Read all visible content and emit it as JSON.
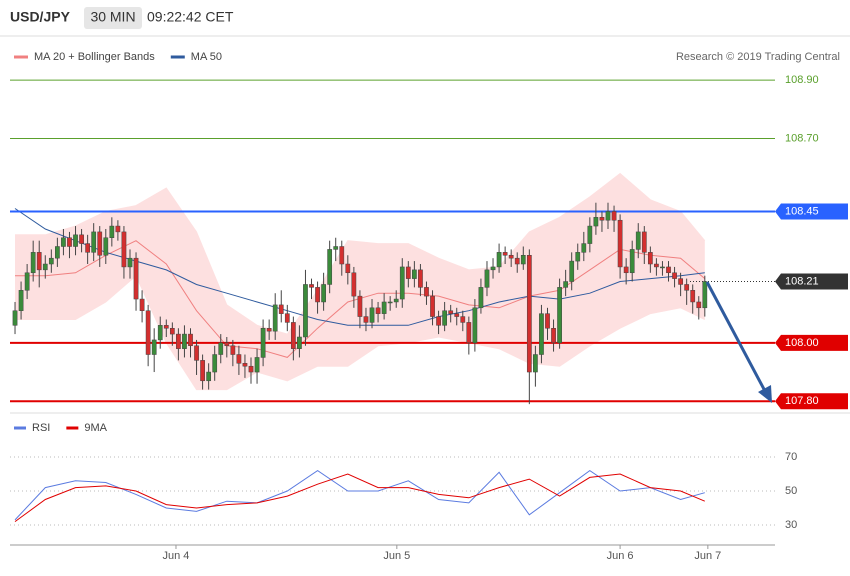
{
  "header": {
    "symbol": "USD/JPY",
    "interval": "30 MIN",
    "time": "09:22:42 CET"
  },
  "chart_data": [
    {
      "type": "candlestick",
      "credit": "Research © 2019 Trading Central",
      "up_color": "#3b8b3b",
      "down_color": "#d32f2f",
      "xlim": [
        -0.83,
        125.6
      ],
      "ylim": [
        107.77,
        109.14
      ],
      "xticks": [
        {
          "value": 26.6,
          "label": "Jun 4"
        },
        {
          "value": 63.1,
          "label": "Jun 5"
        },
        {
          "value": 100,
          "label": "Jun 6"
        },
        {
          "value": 114.5,
          "label": "Jun 7"
        }
      ],
      "ohlc": [
        [
          108.06,
          108.14,
          108.03,
          108.11
        ],
        [
          108.11,
          108.21,
          108.08,
          108.18
        ],
        [
          108.18,
          108.27,
          108.15,
          108.24
        ],
        [
          108.24,
          108.35,
          108.21,
          108.31
        ],
        [
          108.31,
          108.35,
          108.19,
          108.25
        ],
        [
          108.25,
          108.3,
          108.22,
          108.27
        ],
        [
          108.27,
          108.32,
          108.24,
          108.29
        ],
        [
          108.29,
          108.36,
          108.26,
          108.33
        ],
        [
          108.33,
          108.39,
          108.3,
          108.36
        ],
        [
          108.36,
          108.38,
          108.29,
          108.33
        ],
        [
          108.33,
          108.4,
          108.3,
          108.37
        ],
        [
          108.37,
          108.39,
          108.31,
          108.34
        ],
        [
          108.34,
          108.37,
          108.27,
          108.31
        ],
        [
          108.31,
          108.41,
          108.28,
          108.38
        ],
        [
          108.38,
          108.4,
          108.26,
          108.3
        ],
        [
          108.3,
          108.39,
          108.27,
          108.36
        ],
        [
          108.36,
          108.43,
          108.33,
          108.4
        ],
        [
          108.4,
          108.42,
          108.35,
          108.38
        ],
        [
          108.38,
          108.4,
          108.22,
          108.26
        ],
        [
          108.26,
          108.32,
          108.22,
          108.29
        ],
        [
          108.29,
          108.31,
          108.11,
          108.15
        ],
        [
          108.15,
          108.18,
          108.07,
          108.11
        ],
        [
          108.11,
          108.13,
          107.92,
          107.96
        ],
        [
          107.96,
          108.05,
          107.9,
          108.01
        ],
        [
          108.01,
          108.09,
          107.98,
          108.06
        ],
        [
          108.06,
          108.08,
          108.02,
          108.05
        ],
        [
          108.05,
          108.07,
          107.99,
          108.03
        ],
        [
          108.03,
          108.05,
          107.94,
          107.98
        ],
        [
          107.98,
          108.06,
          107.95,
          108.03
        ],
        [
          108.03,
          108.05,
          107.95,
          107.99
        ],
        [
          107.99,
          108.01,
          107.89,
          107.94
        ],
        [
          107.94,
          107.96,
          107.84,
          107.87
        ],
        [
          107.87,
          107.93,
          107.84,
          107.9
        ],
        [
          107.9,
          107.99,
          107.87,
          107.96
        ],
        [
          107.96,
          108.03,
          107.93,
          108.0
        ],
        [
          108.0,
          108.02,
          107.95,
          107.99
        ],
        [
          107.99,
          108.01,
          107.92,
          107.96
        ],
        [
          107.96,
          107.99,
          107.89,
          107.93
        ],
        [
          107.93,
          107.96,
          107.88,
          107.92
        ],
        [
          107.92,
          107.95,
          107.86,
          107.9
        ],
        [
          107.9,
          107.98,
          107.86,
          107.95
        ],
        [
          107.95,
          108.08,
          107.92,
          108.05
        ],
        [
          108.05,
          108.08,
          108.01,
          108.04
        ],
        [
          108.04,
          108.17,
          108.01,
          108.13
        ],
        [
          108.13,
          108.18,
          108.07,
          108.1
        ],
        [
          108.1,
          108.13,
          108.04,
          108.07
        ],
        [
          108.07,
          108.09,
          107.94,
          107.98
        ],
        [
          107.98,
          108.06,
          107.95,
          108.02
        ],
        [
          108.02,
          108.25,
          107.99,
          108.2
        ],
        [
          108.2,
          108.22,
          108.15,
          108.19
        ],
        [
          108.19,
          108.21,
          108.1,
          108.14
        ],
        [
          108.14,
          108.24,
          108.11,
          108.2
        ],
        [
          108.2,
          108.35,
          108.17,
          108.32
        ],
        [
          108.32,
          108.36,
          108.28,
          108.33
        ],
        [
          108.33,
          108.35,
          108.23,
          108.27
        ],
        [
          108.27,
          108.3,
          108.2,
          108.24
        ],
        [
          108.24,
          108.26,
          108.12,
          108.16
        ],
        [
          108.16,
          108.18,
          108.05,
          108.09
        ],
        [
          108.09,
          108.12,
          108.04,
          108.07
        ],
        [
          108.07,
          108.15,
          108.05,
          108.12
        ],
        [
          108.12,
          108.14,
          108.07,
          108.1
        ],
        [
          108.1,
          108.17,
          108.08,
          108.14
        ],
        [
          108.14,
          108.16,
          108.11,
          108.14
        ],
        [
          108.14,
          108.18,
          108.12,
          108.15
        ],
        [
          108.15,
          108.29,
          108.12,
          108.26
        ],
        [
          108.26,
          108.28,
          108.19,
          108.22
        ],
        [
          108.22,
          108.28,
          108.19,
          108.25
        ],
        [
          108.25,
          108.27,
          108.16,
          108.19
        ],
        [
          108.19,
          108.21,
          108.13,
          108.16
        ],
        [
          108.16,
          108.18,
          108.06,
          108.09
        ],
        [
          108.09,
          108.11,
          108.03,
          108.06
        ],
        [
          108.06,
          108.14,
          108.04,
          108.11
        ],
        [
          108.11,
          108.13,
          108.07,
          108.1
        ],
        [
          108.1,
          108.12,
          108.06,
          108.09
        ],
        [
          108.09,
          108.11,
          108.04,
          108.07
        ],
        [
          108.07,
          108.09,
          107.96,
          108.0
        ],
        [
          108.0,
          108.15,
          107.97,
          108.12
        ],
        [
          108.12,
          108.22,
          108.1,
          108.19
        ],
        [
          108.19,
          108.28,
          108.16,
          108.25
        ],
        [
          108.25,
          108.29,
          108.22,
          108.26
        ],
        [
          108.26,
          108.34,
          108.24,
          108.31
        ],
        [
          108.31,
          108.33,
          108.27,
          108.3
        ],
        [
          108.3,
          108.32,
          108.26,
          108.29
        ],
        [
          108.29,
          108.31,
          108.24,
          108.27
        ],
        [
          108.27,
          108.33,
          108.25,
          108.3
        ],
        [
          108.3,
          108.32,
          107.79,
          107.9
        ],
        [
          107.9,
          107.99,
          107.85,
          107.96
        ],
        [
          107.96,
          108.13,
          107.93,
          108.1
        ],
        [
          108.1,
          108.12,
          108.01,
          108.05
        ],
        [
          108.05,
          108.08,
          107.97,
          108.0
        ],
        [
          108.0,
          108.22,
          107.98,
          108.19
        ],
        [
          108.19,
          108.25,
          108.16,
          108.21
        ],
        [
          108.21,
          108.31,
          108.18,
          108.28
        ],
        [
          108.28,
          108.34,
          108.25,
          108.31
        ],
        [
          108.31,
          108.38,
          108.28,
          108.34
        ],
        [
          108.34,
          108.43,
          108.31,
          108.4
        ],
        [
          108.4,
          108.48,
          108.37,
          108.43
        ],
        [
          108.43,
          108.45,
          108.38,
          108.42
        ],
        [
          108.42,
          108.48,
          108.39,
          108.45
        ],
        [
          108.45,
          108.47,
          108.38,
          108.42
        ],
        [
          108.42,
          108.44,
          108.22,
          108.26
        ],
        [
          108.26,
          108.29,
          108.2,
          108.24
        ],
        [
          108.24,
          108.35,
          108.21,
          108.32
        ],
        [
          108.32,
          108.41,
          108.29,
          108.38
        ],
        [
          108.38,
          108.4,
          108.27,
          108.31
        ],
        [
          108.31,
          108.33,
          108.24,
          108.27
        ],
        [
          108.27,
          108.29,
          108.23,
          108.26
        ],
        [
          108.26,
          108.28,
          108.23,
          108.26
        ],
        [
          108.26,
          108.28,
          108.21,
          108.24
        ],
        [
          108.24,
          108.26,
          108.19,
          108.22
        ],
        [
          108.22,
          108.24,
          108.16,
          108.2
        ],
        [
          108.2,
          108.22,
          108.13,
          108.18
        ],
        [
          108.18,
          108.2,
          108.1,
          108.14
        ],
        [
          108.14,
          108.16,
          108.08,
          108.12
        ],
        [
          108.12,
          108.23,
          108.09,
          108.21
        ]
      ],
      "series": [
        {
          "name": "MA 20 + Bollinger Bands",
          "color": "#f08080",
          "band_color": "#fde0e0",
          "x": [
            0,
            5,
            10,
            15,
            20,
            25,
            30,
            35,
            40,
            45,
            50,
            55,
            60,
            65,
            70,
            75,
            80,
            85,
            90,
            95,
            100,
            105,
            110,
            114
          ],
          "values": [
            108.23,
            108.23,
            108.24,
            108.3,
            108.35,
            108.27,
            108.11,
            107.99,
            107.98,
            107.95,
            108.05,
            108.14,
            108.17,
            108.17,
            108.16,
            108.13,
            108.12,
            108.16,
            108.18,
            108.25,
            108.32,
            108.3,
            108.29,
            108.22
          ],
          "upper": [
            108.37,
            108.37,
            108.4,
            108.45,
            108.47,
            108.53,
            108.38,
            108.13,
            108.06,
            108.03,
            108.18,
            108.35,
            108.34,
            108.34,
            108.29,
            108.25,
            108.26,
            108.38,
            108.43,
            108.5,
            108.58,
            108.49,
            108.45,
            108.35
          ],
          "lower": [
            108.08,
            108.08,
            108.08,
            108.14,
            108.23,
            108.0,
            107.84,
            107.84,
            107.9,
            107.87,
            107.92,
            107.92,
            107.99,
            108.0,
            108.02,
            108.0,
            107.98,
            107.93,
            107.92,
            107.99,
            108.05,
            108.1,
            108.12,
            108.08
          ]
        },
        {
          "name": "MA 50",
          "color": "#2f5b9e",
          "x": [
            0,
            5,
            10,
            15,
            20,
            25,
            30,
            35,
            40,
            45,
            50,
            55,
            60,
            65,
            70,
            75,
            80,
            85,
            90,
            95,
            100,
            105,
            110,
            114
          ],
          "values": [
            108.46,
            108.39,
            108.35,
            108.31,
            108.28,
            108.25,
            108.2,
            108.17,
            108.14,
            108.11,
            108.08,
            108.06,
            108.06,
            108.06,
            108.09,
            108.11,
            108.14,
            108.16,
            108.15,
            108.17,
            108.21,
            108.22,
            108.23,
            108.24
          ]
        }
      ],
      "levels": [
        {
          "value": 108.9,
          "label": "108.90",
          "color": "#5aa02c",
          "style": "text"
        },
        {
          "value": 108.7,
          "label": "108.70",
          "color": "#5aa02c",
          "style": "text"
        },
        {
          "value": 108.45,
          "label": "108.45",
          "color": "#2962ff",
          "style": "box"
        },
        {
          "value": 108.21,
          "label": "108.21",
          "color": "#333333",
          "style": "current"
        },
        {
          "value": 108.0,
          "label": "108.00",
          "color": "#e00000",
          "style": "box"
        },
        {
          "value": 107.8,
          "label": "107.80",
          "color": "#e00000",
          "style": "box"
        }
      ]
    },
    {
      "type": "line",
      "xlim": [
        -0.83,
        125.6
      ],
      "ylim": [
        20,
        80
      ],
      "yticks": [
        70,
        50,
        30
      ],
      "grid": true,
      "series": [
        {
          "name": "RSI",
          "color": "#5b7be0",
          "x": [
            0,
            5,
            10,
            15,
            20,
            25,
            30,
            35,
            40,
            45,
            50,
            55,
            60,
            65,
            70,
            75,
            80,
            85,
            90,
            95,
            100,
            105,
            110,
            114
          ],
          "values": [
            33,
            52,
            56,
            55,
            48,
            40,
            38,
            44,
            43,
            50,
            62,
            50,
            50,
            56,
            45,
            43,
            61,
            36,
            49,
            62,
            50,
            52,
            45,
            49
          ]
        },
        {
          "name": "9MA",
          "color": "#e00000",
          "x": [
            0,
            5,
            10,
            15,
            20,
            25,
            30,
            35,
            40,
            45,
            50,
            55,
            60,
            65,
            70,
            75,
            80,
            85,
            90,
            95,
            100,
            105,
            110,
            114
          ],
          "values": [
            32,
            45,
            52,
            53,
            50,
            42,
            40,
            42,
            43,
            47,
            54,
            60,
            52,
            52,
            48,
            46,
            52,
            57,
            47,
            58,
            60,
            52,
            50,
            44
          ]
        }
      ]
    }
  ]
}
